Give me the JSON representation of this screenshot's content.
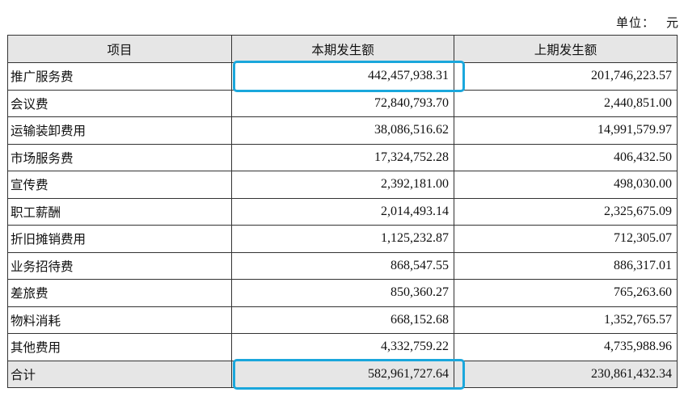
{
  "unit_label": "单位：",
  "unit_value": "元",
  "table": {
    "headers": [
      "项目",
      "本期发生额",
      "上期发生额"
    ],
    "rows": [
      {
        "item": "推广服务费",
        "current": "442,457,938.31",
        "previous": "201,746,223.57",
        "highlight": true
      },
      {
        "item": "会议费",
        "current": "72,840,793.70",
        "previous": "2,440,851.00"
      },
      {
        "item": "运输装卸费用",
        "current": "38,086,516.62",
        "previous": "14,991,579.97"
      },
      {
        "item": "市场服务费",
        "current": "17,324,752.28",
        "previous": "406,432.50"
      },
      {
        "item": "宣传费",
        "current": "2,392,181.00",
        "previous": "498,030.00"
      },
      {
        "item": "职工薪酬",
        "current": "2,014,493.14",
        "previous": "2,325,675.09"
      },
      {
        "item": "折旧摊销费用",
        "current": "1,125,232.87",
        "previous": "712,305.07"
      },
      {
        "item": "业务招待费",
        "current": "868,547.55",
        "previous": "886,317.01"
      },
      {
        "item": "差旅费",
        "current": "850,360.27",
        "previous": "765,263.60"
      },
      {
        "item": "物料消耗",
        "current": "668,152.68",
        "previous": "1,352,765.57"
      },
      {
        "item": "其他费用",
        "current": "4,332,759.22",
        "previous": "4,735,988.96"
      }
    ],
    "total": {
      "item": "合计",
      "current": "582,961,727.64",
      "previous": "230,861,432.34",
      "highlight": true
    }
  },
  "colors": {
    "highlight_border": "#1aa7dc",
    "header_bg": "#e6e6e6"
  }
}
